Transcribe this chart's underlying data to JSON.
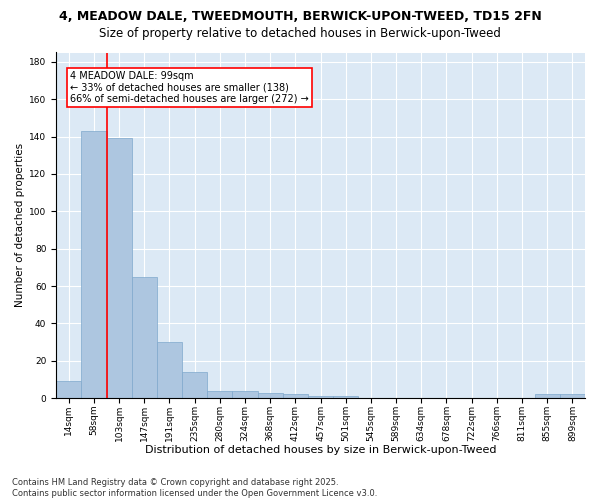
{
  "title_line1": "4, MEADOW DALE, TWEEDMOUTH, BERWICK-UPON-TWEED, TD15 2FN",
  "title_line2": "Size of property relative to detached houses in Berwick-upon-Tweed",
  "xlabel": "Distribution of detached houses by size in Berwick-upon-Tweed",
  "ylabel": "Number of detached properties",
  "categories": [
    "14sqm",
    "58sqm",
    "103sqm",
    "147sqm",
    "191sqm",
    "235sqm",
    "280sqm",
    "324sqm",
    "368sqm",
    "412sqm",
    "457sqm",
    "501sqm",
    "545sqm",
    "589sqm",
    "634sqm",
    "678sqm",
    "722sqm",
    "766sqm",
    "811sqm",
    "855sqm",
    "899sqm"
  ],
  "values": [
    9,
    143,
    139,
    65,
    30,
    14,
    4,
    4,
    3,
    2,
    1,
    1,
    0,
    0,
    0,
    0,
    0,
    0,
    0,
    2,
    2
  ],
  "bar_color": "#adc6e0",
  "bar_edge_color": "#7fa8cc",
  "vline_color": "red",
  "vline_x_index": 1.5,
  "annotation_text": "4 MEADOW DALE: 99sqm\n← 33% of detached houses are smaller (138)\n66% of semi-detached houses are larger (272) →",
  "box_color": "white",
  "box_edge_color": "red",
  "ylim": [
    0,
    185
  ],
  "yticks": [
    0,
    20,
    40,
    60,
    80,
    100,
    120,
    140,
    160,
    180
  ],
  "background_color": "#dce9f5",
  "fig_background_color": "#ffffff",
  "footer_text": "Contains HM Land Registry data © Crown copyright and database right 2025.\nContains public sector information licensed under the Open Government Licence v3.0.",
  "title_fontsize": 9,
  "subtitle_fontsize": 8.5,
  "tick_fontsize": 6.5,
  "xlabel_fontsize": 8,
  "ylabel_fontsize": 7.5,
  "annotation_fontsize": 7,
  "footer_fontsize": 6
}
